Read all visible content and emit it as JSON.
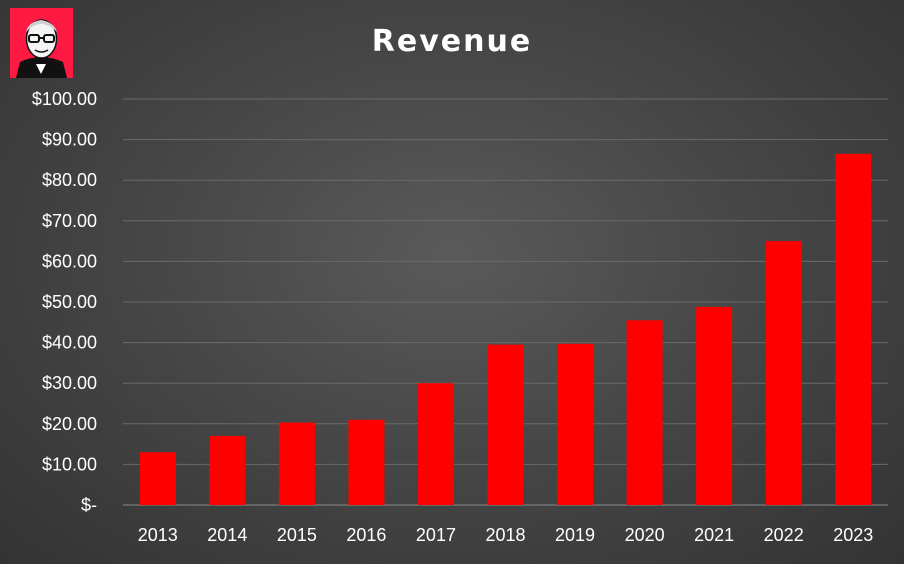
{
  "chart_data": {
    "type": "bar",
    "title": "Revenue",
    "categories": [
      "2013",
      "2014",
      "2015",
      "2016",
      "2017",
      "2018",
      "2019",
      "2020",
      "2021",
      "2022",
      "2023"
    ],
    "values": [
      13.0,
      17.0,
      20.3,
      21.0,
      30.0,
      39.5,
      39.7,
      45.5,
      48.8,
      65.0,
      86.5
    ],
    "ylim": [
      0,
      100
    ],
    "yticks": [
      0,
      10,
      20,
      30,
      40,
      50,
      60,
      70,
      80,
      90,
      100
    ],
    "ytick_labels": [
      "$-",
      "$10.00",
      "$20.00",
      "$30.00",
      "$40.00",
      "$50.00",
      "$60.00",
      "$70.00",
      "$80.00",
      "$90.00",
      "$100.00"
    ],
    "grid": true,
    "legend": "none",
    "xlabel": "",
    "ylabel": "",
    "bar_color": "#ff0000",
    "grid_color": "#6a6a6a"
  },
  "logo": {
    "name": "portrait-logo-icon",
    "background": "#ff1a44"
  }
}
